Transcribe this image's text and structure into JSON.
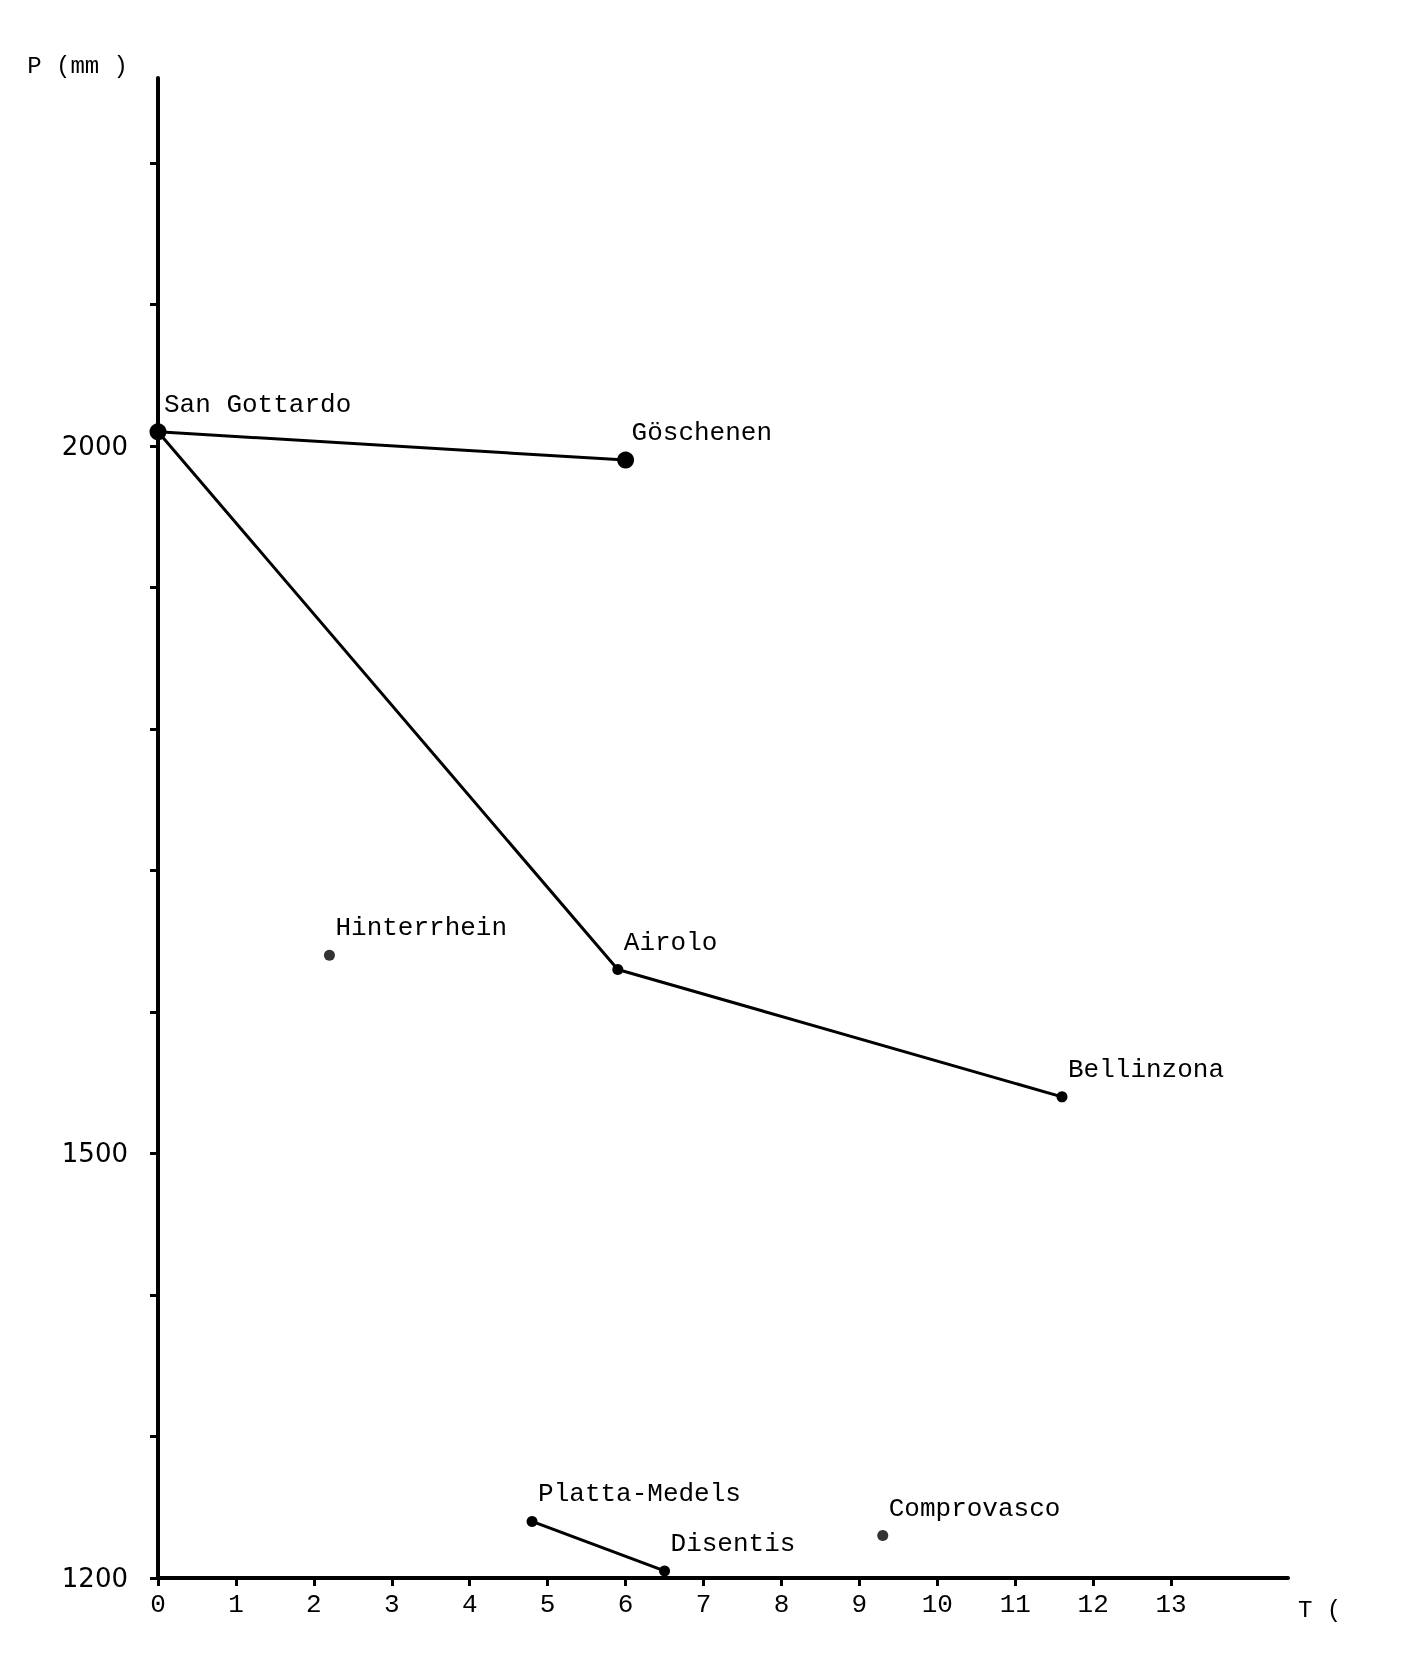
{
  "chart_data": {
    "type": "line",
    "xlabel": "T (",
    "ylabel": "P (mm )",
    "xlim": [
      0,
      14.5
    ],
    "xticks": [
      0,
      1,
      2,
      3,
      4,
      5,
      6,
      7,
      8,
      9,
      10,
      11,
      12,
      13
    ],
    "ylim": [
      1200,
      2260
    ],
    "yticks": [
      1200,
      {
        "value": 1300,
        "label": null
      },
      {
        "value": 1400,
        "label": null
      },
      1500,
      {
        "value": 1600,
        "label": null
      },
      {
        "value": 1700,
        "label": null
      },
      {
        "value": 1800,
        "label": null
      },
      {
        "value": 1900,
        "label": null
      },
      2000,
      {
        "value": 2100,
        "label": null
      },
      {
        "value": 2200,
        "label": null
      }
    ],
    "grid": false,
    "marker": "circle",
    "line_style": "solid",
    "series": [
      {
        "color": "#000000",
        "x": [
          0,
          6
        ],
        "values": [
          2010,
          1990
        ]
      },
      {
        "color": "#000000",
        "x": [
          0,
          5.9,
          11.6
        ],
        "values": [
          2010,
          1630,
          1540
        ]
      },
      {
        "color": "#000000",
        "x": [
          4.8,
          6.5
        ],
        "values": [
          1240,
          1205
        ]
      },
      {
        "type": "scatter",
        "color": "#000000",
        "x": [
          2.2
        ],
        "values": [
          1640
        ]
      },
      {
        "type": "scatter",
        "color": "#000000",
        "x": [
          9.3
        ],
        "values": [
          1230
        ]
      }
    ],
    "annotations": [
      {
        "text": "San Gottardo",
        "x": 0,
        "y": 2010
      },
      {
        "text": "Göschenen",
        "x": 6,
        "y": 1990
      },
      {
        "text": "Airolo",
        "x": 5.9,
        "y": 1630
      },
      {
        "text": "Bellinzona",
        "x": 11.6,
        "y": 1540
      },
      {
        "text": "Hinterrhein",
        "x": 2.2,
        "y": 1640
      },
      {
        "text": "Platta-Medels",
        "x": 4.8,
        "y": 1240
      },
      {
        "text": "Disentis",
        "x": 6.5,
        "y": 1205
      },
      {
        "text": "Comprovasco",
        "x": 9.3,
        "y": 1230
      }
    ]
  }
}
